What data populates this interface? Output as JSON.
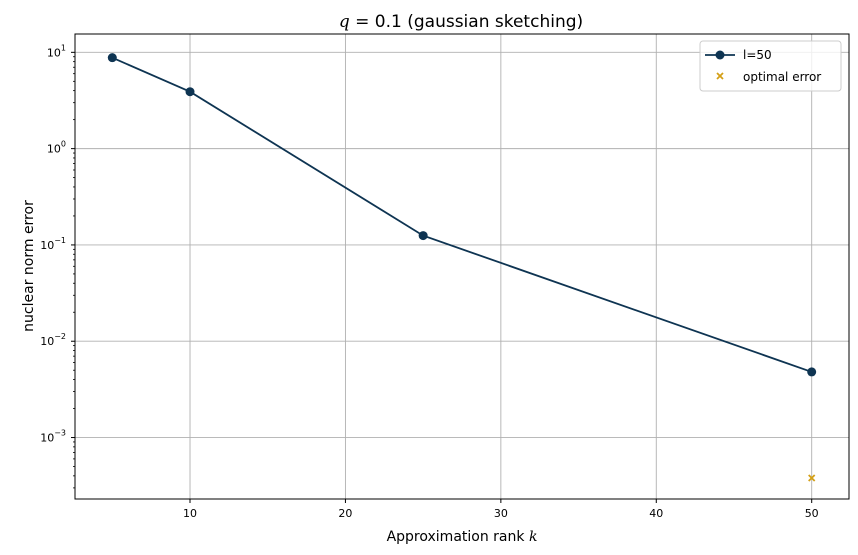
{
  "chart_data": {
    "type": "line",
    "title_prefix": "q",
    "title_suffix": " = 0.1 (gaussian sketching)",
    "xlabel_text": "Approximation rank ",
    "xlabel_var": "k",
    "ylabel": "nuclear norm error",
    "x_ticks": [
      "10",
      "20",
      "30",
      "40",
      "50"
    ],
    "x_tick_values": [
      10,
      20,
      30,
      40,
      50
    ],
    "y_tick_exponents": [
      "1",
      "0",
      "-1",
      "-2",
      "-3"
    ],
    "y_tick_values": [
      1,
      0,
      -1,
      -2,
      -3
    ],
    "xlim": [
      2.6,
      52.4
    ],
    "ylim": [
      0.00023,
      15.5
    ],
    "y_scale": "log",
    "grid": true,
    "legend_position": "top-right",
    "series": [
      {
        "name": "l=50",
        "style": "line-with-circle-markers",
        "color": "#0e3452",
        "x": [
          5,
          10,
          25,
          50
        ],
        "y": [
          8.8,
          3.9,
          0.125,
          0.0048
        ]
      },
      {
        "name": "optimal error",
        "style": "x-markers",
        "color": "#d4a017",
        "x": [
          50
        ],
        "y": [
          0.00038
        ]
      }
    ]
  }
}
